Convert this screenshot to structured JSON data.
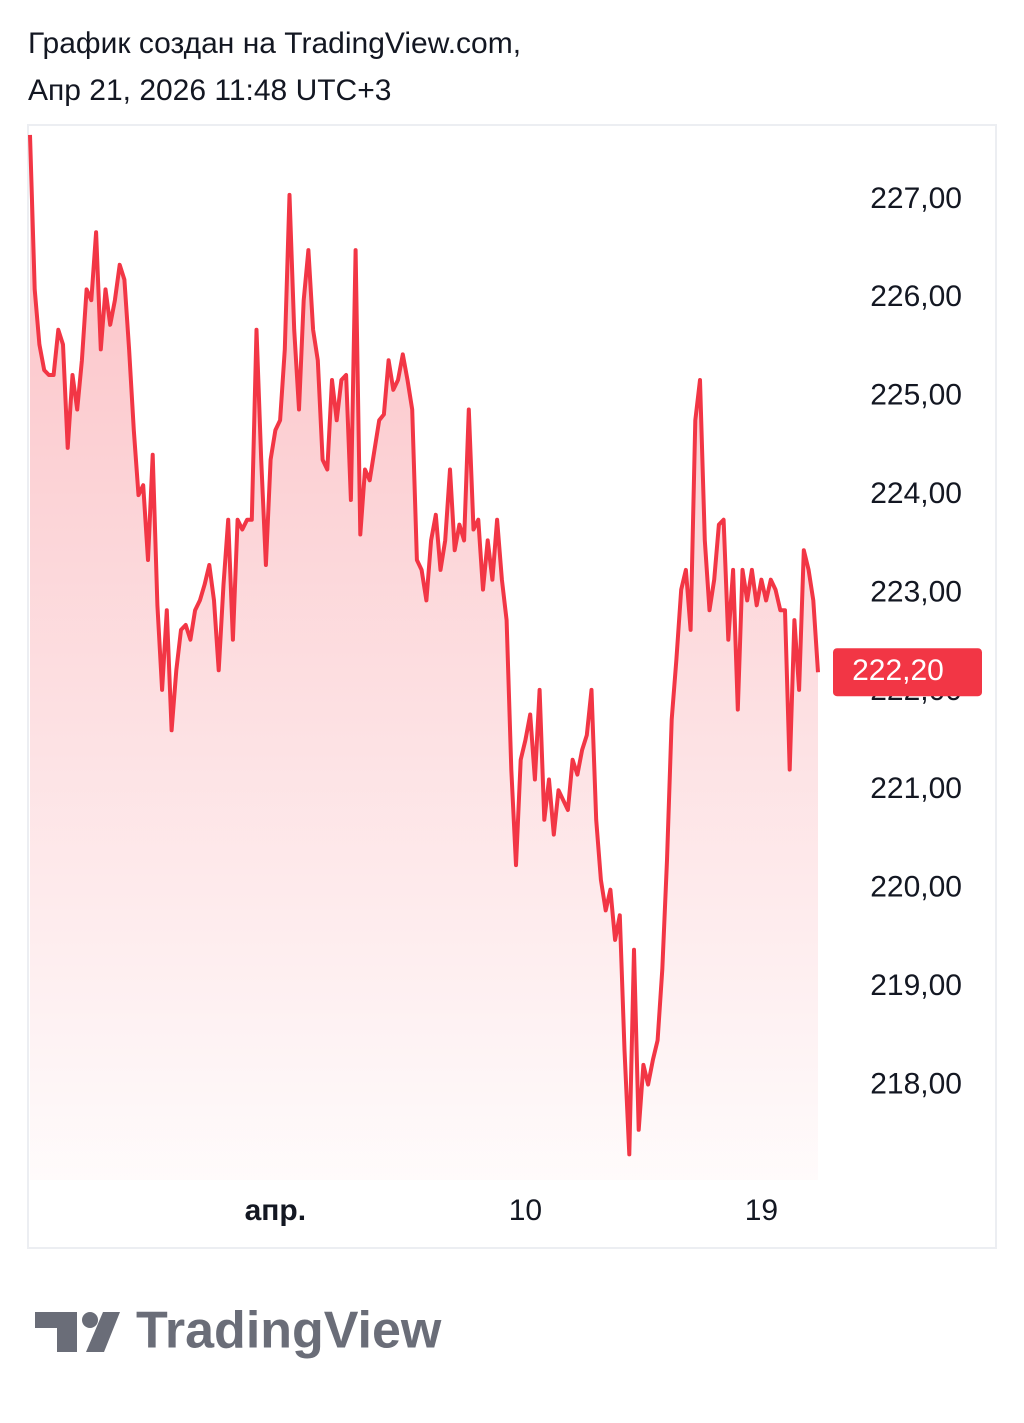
{
  "header": {
    "line1": "График создан на TradingView.com,",
    "line2": "Апр 21, 2026 11:48 UTC+3"
  },
  "chart_data": {
    "type": "line",
    "series": [
      {
        "color": "#f23645",
        "values": [
          227.66,
          226.09,
          225.53,
          225.27,
          225.22,
          225.22,
          225.68,
          225.53,
          224.48,
          225.22,
          224.87,
          225.37,
          226.09,
          225.98,
          226.67,
          225.48,
          226.09,
          225.73,
          225.98,
          226.34,
          226.19,
          225.48,
          224.66,
          224.0,
          224.1,
          223.34,
          224.41,
          222.88,
          222.02,
          222.83,
          221.61,
          222.22,
          222.63,
          222.68,
          222.53,
          222.83,
          222.93,
          223.09,
          223.29,
          222.93,
          222.22,
          223.09,
          223.75,
          222.53,
          223.75,
          223.65,
          223.75,
          223.75,
          225.68,
          224.36,
          223.29,
          224.36,
          224.66,
          224.76,
          225.48,
          227.05,
          225.68,
          224.87,
          225.98,
          226.49,
          225.68,
          225.37,
          224.36,
          224.26,
          225.17,
          224.76,
          225.17,
          225.22,
          223.95,
          226.49,
          223.6,
          224.26,
          224.15,
          224.46,
          224.76,
          224.82,
          225.37,
          225.07,
          225.17,
          225.43,
          225.17,
          224.87,
          223.34,
          223.24,
          222.93,
          223.54,
          223.8,
          223.24,
          223.54,
          224.26,
          223.44,
          223.7,
          223.54,
          224.87,
          223.65,
          223.75,
          223.04,
          223.54,
          223.14,
          223.75,
          223.14,
          222.73,
          221.21,
          220.24,
          221.31,
          221.51,
          221.77,
          221.11,
          222.02,
          220.7,
          221.11,
          220.55,
          221.0,
          220.9,
          220.8,
          221.31,
          221.16,
          221.41,
          221.56,
          222.02,
          220.7,
          220.09,
          219.78,
          219.99,
          219.48,
          219.73,
          218.36,
          217.3,
          219.38,
          217.55,
          218.21,
          218.01,
          218.26,
          218.46,
          219.18,
          220.29,
          221.72,
          222.33,
          223.04,
          223.24,
          222.63,
          224.76,
          225.17,
          223.54,
          222.83,
          223.14,
          223.7,
          223.75,
          222.53,
          223.24,
          221.82,
          223.24,
          222.93,
          223.24,
          222.88,
          223.14,
          222.93,
          223.14,
          223.04,
          222.83,
          222.83,
          221.21,
          222.73,
          222.02,
          223.44,
          223.24,
          222.93,
          222.2
        ]
      }
    ],
    "last_value": {
      "value": 222.2,
      "label": "222,20"
    },
    "xlim": [
      0,
      167
    ],
    "xticks": [
      {
        "value": 52,
        "label": "апр."
      },
      {
        "value": 105,
        "label": "10"
      },
      {
        "value": 155,
        "label": "19"
      }
    ],
    "ylim": [
      217.04,
      227.71
    ],
    "yticks": [
      {
        "value": 218,
        "label": "218,00"
      },
      {
        "value": 219,
        "label": "219,00"
      },
      {
        "value": 220,
        "label": "220,00"
      },
      {
        "value": 221,
        "label": "221,00"
      },
      {
        "value": 222,
        "label": "222,00"
      },
      {
        "value": 223,
        "label": "223,00"
      },
      {
        "value": 224,
        "label": "224,00"
      },
      {
        "value": 225,
        "label": "225,00"
      },
      {
        "value": 226,
        "label": "226,00"
      },
      {
        "value": 227,
        "label": "227,00"
      }
    ],
    "grid": false
  },
  "footer": {
    "logo": "TradingView"
  }
}
